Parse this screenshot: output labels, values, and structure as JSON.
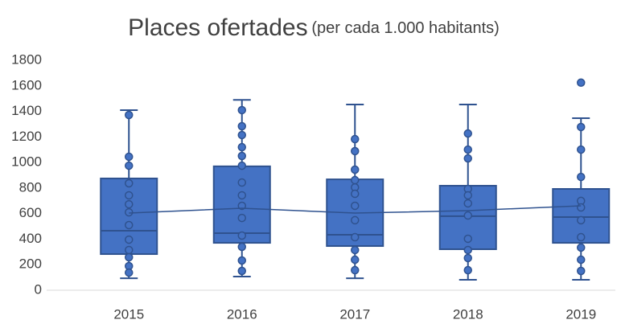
{
  "chart_data": {
    "type": "box",
    "title": "Places ofertades",
    "subtitle": "(per cada 1.000 habitants)",
    "categories": [
      "2015",
      "2016",
      "2017",
      "2018",
      "2019"
    ],
    "color": "#4472c4",
    "edge_color": "#2f528f",
    "ylim": [
      0,
      1800
    ],
    "yticks": [
      0,
      200,
      400,
      600,
      800,
      1000,
      1200,
      1400,
      1600,
      1800
    ],
    "grid": false,
    "boxes": [
      {
        "min": 94,
        "q1": 283,
        "median": 466,
        "q3": 875,
        "max": 1410,
        "mean": 604,
        "points": [
          1372,
          1045,
          975,
          837,
          743,
          673,
          610,
          510,
          396,
          315,
          258,
          189,
          138
        ]
      },
      {
        "min": 107,
        "q1": 371,
        "median": 447,
        "q3": 970,
        "max": 1490,
        "mean": 642,
        "points": [
          1410,
          1284,
          1215,
          1120,
          1051,
          975,
          843,
          743,
          661,
          566,
          428,
          340,
          233,
          151
        ]
      },
      {
        "min": 94,
        "q1": 346,
        "median": 434,
        "q3": 868,
        "max": 1454,
        "mean": 604,
        "points": [
          1183,
          1089,
          944,
          862,
          805,
          755,
          661,
          548,
          415,
          315,
          239,
          157
        ]
      },
      {
        "min": 82,
        "q1": 321,
        "median": 580,
        "q3": 818,
        "max": 1454,
        "mean": 623,
        "points": [
          1227,
          1101,
          1032,
          793,
          743,
          680,
          585,
          403,
          315,
          252,
          157
        ]
      },
      {
        "min": 82,
        "q1": 371,
        "median": 573,
        "q3": 793,
        "max": 1347,
        "mean": 661,
        "points": [
          1625,
          1278,
          1101,
          887,
          699,
          648,
          548,
          415,
          334,
          239,
          151
        ]
      }
    ]
  }
}
